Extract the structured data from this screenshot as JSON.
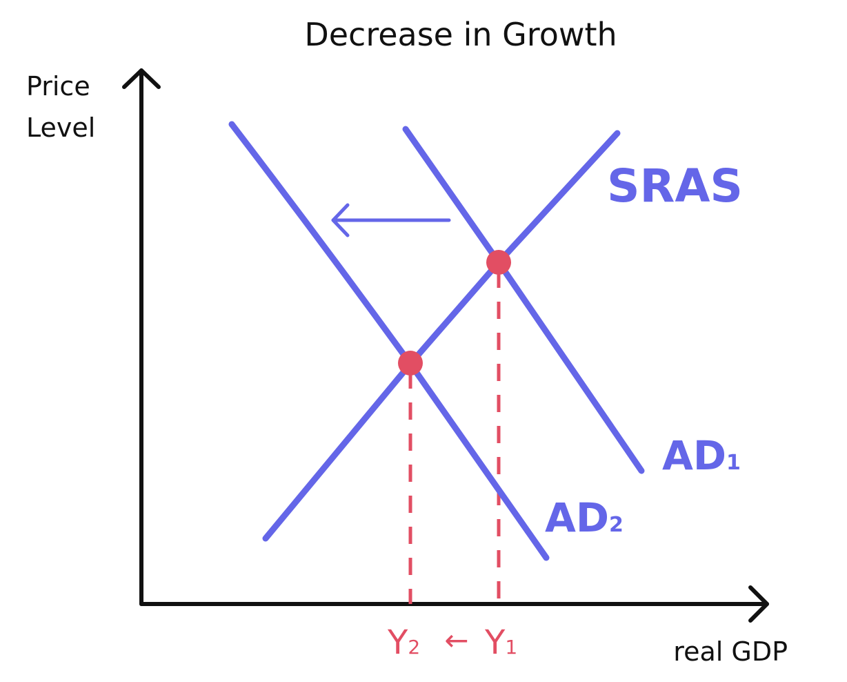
{
  "title": "Decrease in Growth",
  "axes": {
    "y_label_line1": "Price",
    "y_label_line2": "Level",
    "x_label": "real GDP"
  },
  "curves": {
    "sras": {
      "label": "SRAS"
    },
    "ad1": {
      "label": "AD",
      "subscript": "1"
    },
    "ad2": {
      "label": "AD",
      "subscript": "2"
    }
  },
  "outputs": {
    "y1": {
      "label": "Y",
      "subscript": "1"
    },
    "y2": {
      "label": "Y",
      "subscript": "2"
    },
    "arrow_glyph": "←"
  },
  "colors": {
    "curve": "#6466e8",
    "equilibrium": "#e24e63",
    "axis": "#111111",
    "background": "#ffffff"
  }
}
